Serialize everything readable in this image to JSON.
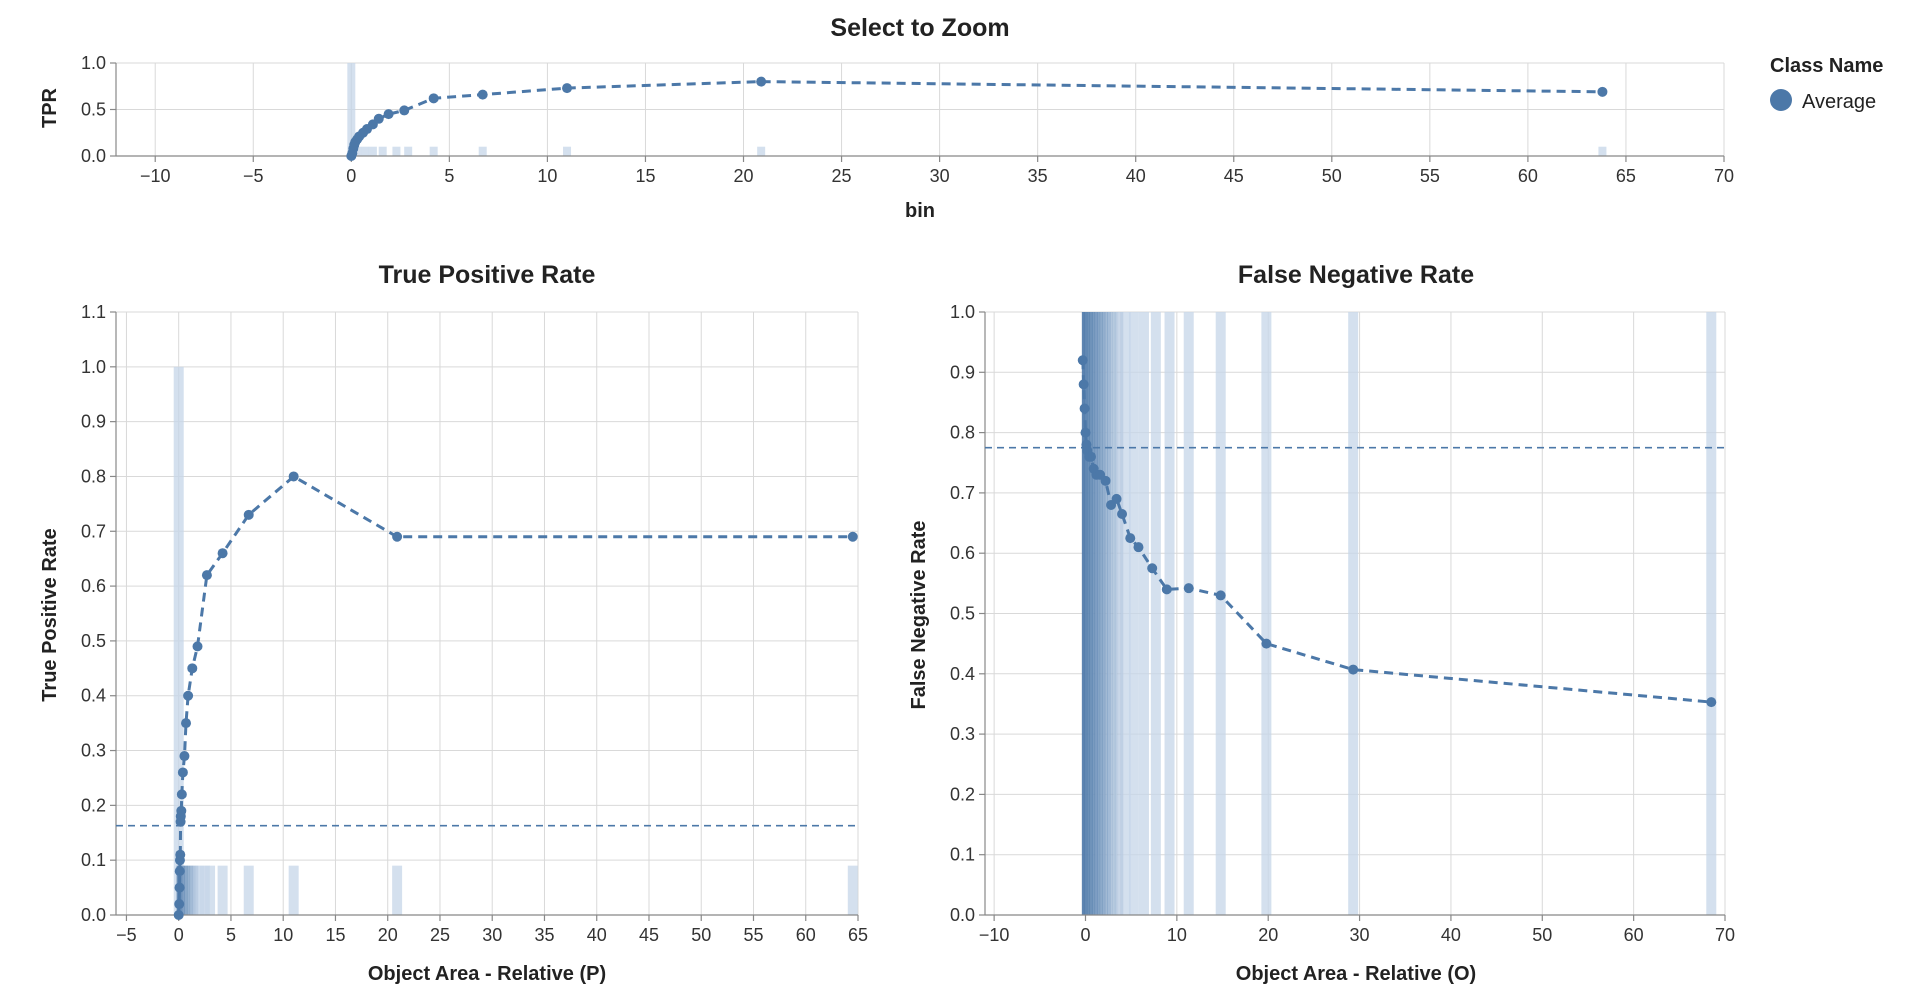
{
  "colors": {
    "series": "#4c78a8",
    "bar": "#c6d5e8",
    "grid": "#d9d9d9",
    "axis": "#888888"
  },
  "legend": {
    "title": "Class Name",
    "items": [
      {
        "label": "Average",
        "color": "#4c78a8"
      }
    ]
  },
  "chart_data": [
    {
      "type": "line",
      "title": "Select to Zoom",
      "xlabel": "bin",
      "ylabel": "TPR",
      "xlim": [
        -12,
        70
      ],
      "ylim": [
        0,
        1.0
      ],
      "xticks": [
        -10,
        -5,
        0,
        5,
        10,
        15,
        20,
        25,
        30,
        35,
        40,
        45,
        50,
        55,
        60,
        65,
        70
      ],
      "xtick_labels": [
        "−10",
        "−5",
        "0",
        "5",
        "10",
        "15",
        "20",
        "25",
        "30",
        "35",
        "40",
        "45",
        "50",
        "55",
        "60",
        "65",
        "70"
      ],
      "yticks": [
        0,
        0.5,
        1.0
      ],
      "ytick_labels": [
        "0.0",
        "0.5",
        "1.0"
      ],
      "grid": true,
      "series": [
        {
          "name": "Average",
          "x": [
            0,
            0.05,
            0.1,
            0.15,
            0.2,
            0.3,
            0.4,
            0.6,
            0.8,
            1.1,
            1.4,
            1.9,
            2.7,
            4.2,
            6.7,
            11.0,
            20.9,
            63.8
          ],
          "y": [
            0,
            0.03,
            0.08,
            0.12,
            0.15,
            0.18,
            0.21,
            0.25,
            0.29,
            0.34,
            0.4,
            0.45,
            0.49,
            0.62,
            0.66,
            0.73,
            0.8,
            0.69
          ]
        }
      ],
      "histogram": {
        "x": [
          0,
          0.3,
          0.7,
          1.1,
          1.6,
          2.3,
          2.9,
          4.2,
          6.7,
          11.0,
          20.9,
          63.8
        ],
        "height": [
          1.0,
          0.1,
          0.1,
          0.1,
          0.1,
          0.1,
          0.1,
          0.1,
          0.1,
          0.1,
          0.1,
          0.1
        ]
      }
    },
    {
      "type": "line",
      "title": "True Positive Rate",
      "xlabel": "Object Area - Relative (P)",
      "ylabel": "True Positive Rate",
      "xlim": [
        -6,
        65
      ],
      "ylim": [
        0,
        1.1
      ],
      "xticks": [
        -5,
        0,
        5,
        10,
        15,
        20,
        25,
        30,
        35,
        40,
        45,
        50,
        55,
        60,
        65
      ],
      "xtick_labels": [
        "−5",
        "0",
        "5",
        "10",
        "15",
        "20",
        "25",
        "30",
        "35",
        "40",
        "45",
        "50",
        "55",
        "60",
        "65"
      ],
      "yticks": [
        0,
        0.1,
        0.2,
        0.3,
        0.4,
        0.5,
        0.6,
        0.7,
        0.8,
        0.9,
        1.0,
        1.1
      ],
      "ytick_labels": [
        "0.0",
        "0.1",
        "0.2",
        "0.3",
        "0.4",
        "0.5",
        "0.6",
        "0.7",
        "0.8",
        "0.9",
        "1.0",
        "1.1"
      ],
      "grid": true,
      "reference_line": 0.163,
      "series": [
        {
          "name": "Average",
          "x": [
            0,
            0.05,
            0.08,
            0.1,
            0.12,
            0.15,
            0.18,
            0.2,
            0.25,
            0.3,
            0.4,
            0.55,
            0.7,
            0.9,
            1.3,
            1.8,
            2.7,
            4.2,
            6.7,
            11.0,
            20.9,
            64.5
          ],
          "y": [
            0,
            0.02,
            0.05,
            0.08,
            0.1,
            0.11,
            0.17,
            0.18,
            0.19,
            0.22,
            0.26,
            0.29,
            0.35,
            0.4,
            0.45,
            0.49,
            0.62,
            0.66,
            0.73,
            0.8,
            0.69,
            0.69
          ]
        }
      ],
      "histogram": {
        "x": [
          0,
          0.5,
          1.0,
          1.5,
          2.0,
          2.5,
          3.0,
          4.2,
          6.7,
          11.0,
          20.9,
          64.5
        ],
        "height": [
          1.0,
          0.09,
          0.09,
          0.09,
          0.09,
          0.09,
          0.09,
          0.09,
          0.09,
          0.09,
          0.09,
          0.09
        ]
      }
    },
    {
      "type": "line",
      "title": "False Negative Rate",
      "xlabel": "Object Area - Relative (O)",
      "ylabel": "False Negative Rate",
      "xlim": [
        -11,
        70
      ],
      "ylim": [
        0,
        1.0
      ],
      "xticks": [
        -10,
        0,
        10,
        20,
        30,
        40,
        50,
        60,
        70
      ],
      "xtick_labels": [
        "−10",
        "0",
        "10",
        "20",
        "30",
        "40",
        "50",
        "60",
        "70"
      ],
      "yticks": [
        0,
        0.1,
        0.2,
        0.3,
        0.4,
        0.5,
        0.6,
        0.7,
        0.8,
        0.9,
        1.0
      ],
      "ytick_labels": [
        "0.0",
        "0.1",
        "0.2",
        "0.3",
        "0.4",
        "0.5",
        "0.6",
        "0.7",
        "0.8",
        "0.9",
        "1.0"
      ],
      "grid": true,
      "reference_line": 0.775,
      "series": [
        {
          "name": "Average",
          "x": [
            -0.3,
            -0.2,
            -0.1,
            0,
            0.1,
            0.2,
            0.4,
            0.6,
            0.9,
            1.2,
            1.6,
            2.2,
            2.8,
            3.4,
            4.0,
            4.9,
            5.8,
            7.3,
            8.9,
            11.3,
            14.8,
            19.8,
            29.3,
            68.5
          ],
          "y": [
            0.92,
            0.88,
            0.84,
            0.8,
            0.78,
            0.77,
            0.76,
            0.76,
            0.74,
            0.73,
            0.73,
            0.72,
            0.68,
            0.69,
            0.665,
            0.625,
            0.61,
            0.575,
            0.54,
            0.542,
            0.53,
            0.45,
            0.407,
            0.353
          ]
        }
      ],
      "histogram": {
        "x": [
          0.3,
          1.0,
          1.6,
          2.2,
          2.9,
          3.6,
          4.4,
          5.3,
          6.4,
          7.7,
          9.2,
          11.3,
          14.8,
          19.8,
          29.3,
          68.5
        ],
        "height": [
          1,
          1,
          1,
          1,
          1,
          1,
          1,
          1,
          1,
          1,
          1,
          1,
          1,
          1,
          1,
          1
        ]
      }
    }
  ]
}
